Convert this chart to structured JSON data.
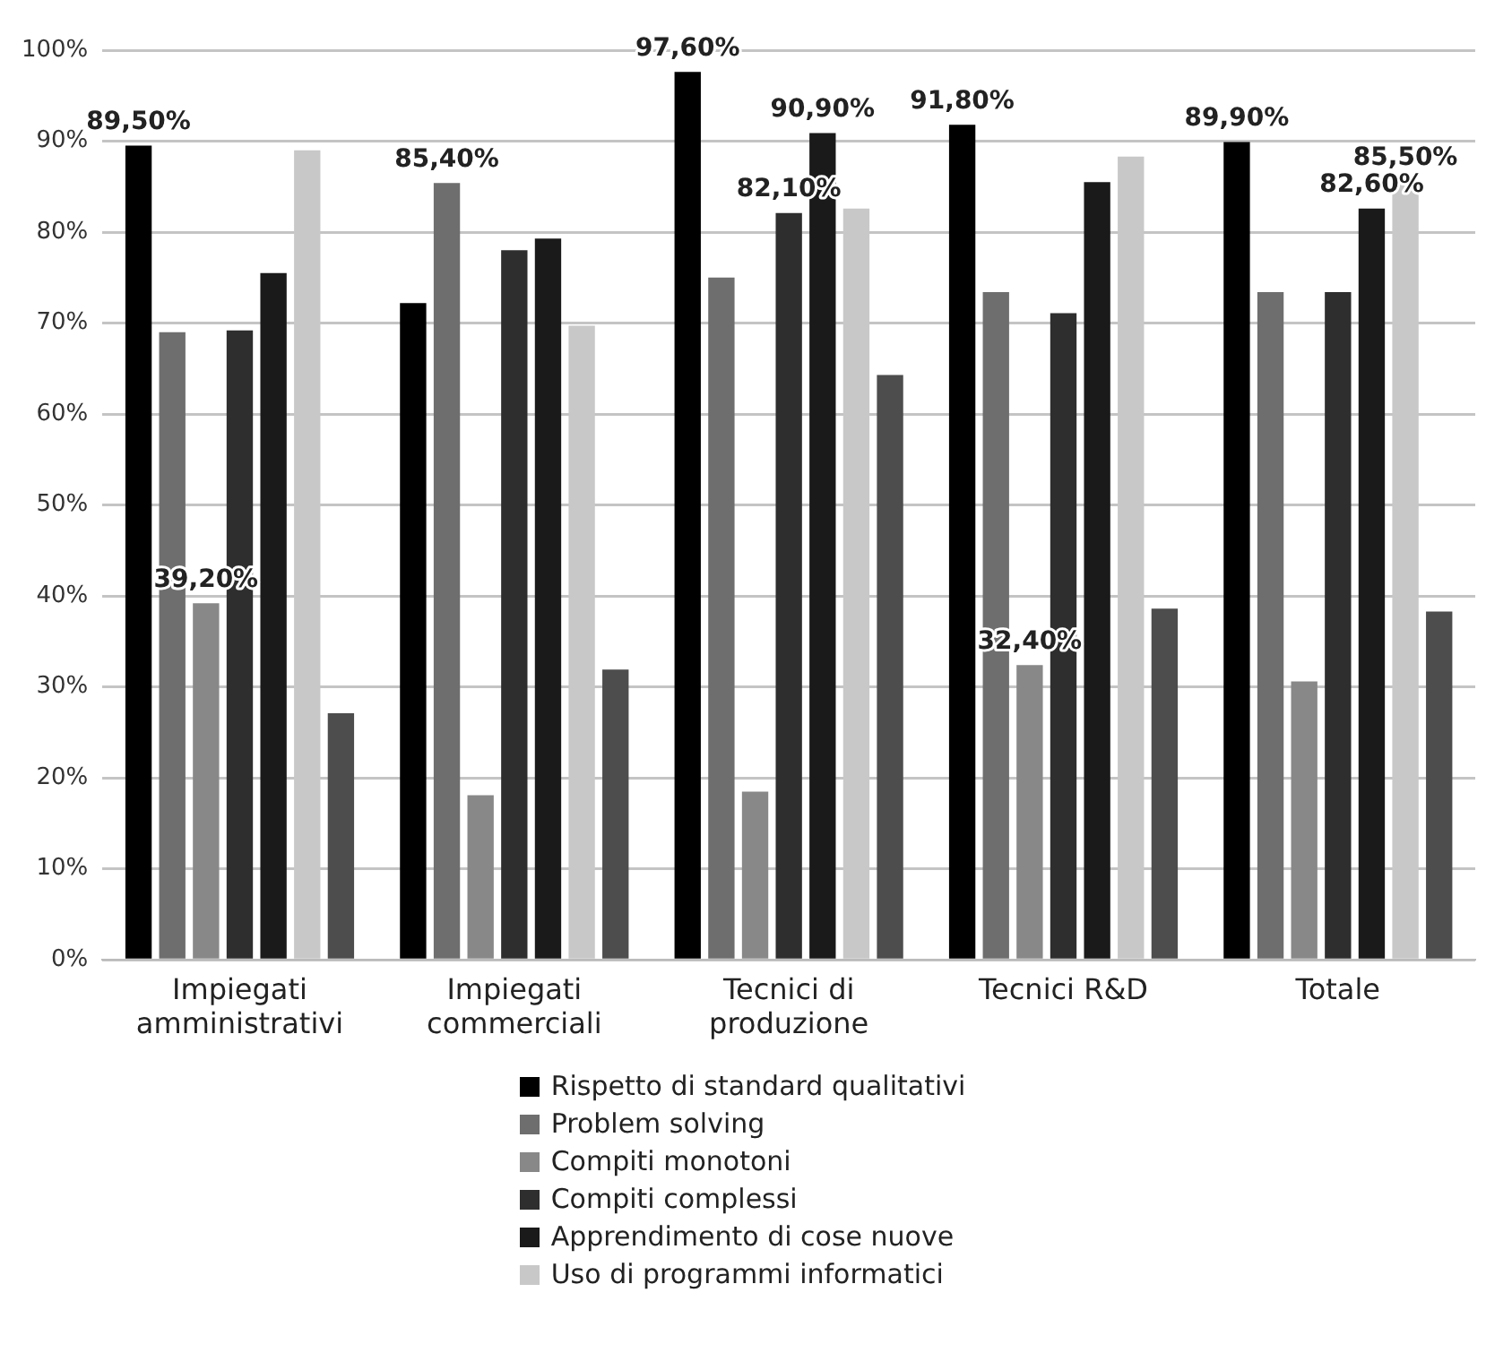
{
  "chart_data": {
    "type": "bar",
    "categories": [
      "Impiegati amministrativi",
      "Impiegati commerciali",
      "Tecnici di produzione",
      "Tecnici R&D",
      "Totale"
    ],
    "series": [
      {
        "name": "Rispetto di standard qualitativi",
        "color": "#000000",
        "values": [
          89.5,
          72.2,
          97.6,
          91.8,
          89.9
        ],
        "value_labels": [
          "89,50%",
          null,
          "97,60%",
          "91,80%",
          "89,90%"
        ]
      },
      {
        "name": "Problem solving",
        "color": "#6e6e6e",
        "values": [
          69,
          85.4,
          75,
          73.4,
          73.4
        ],
        "value_labels": [
          null,
          "85,40%",
          null,
          null,
          null
        ]
      },
      {
        "name": "Compiti monotoni",
        "color": "#888888",
        "values": [
          39.2,
          18.1,
          18.5,
          32.4,
          30.6
        ],
        "value_labels": [
          "39,20%",
          null,
          null,
          "32,40%",
          null
        ]
      },
      {
        "name": "Compiti complessi",
        "color": "#2e2e2e",
        "values": [
          69.2,
          78,
          82.1,
          71.1,
          73.4
        ],
        "value_labels": [
          null,
          null,
          "82,10%",
          null,
          null
        ]
      },
      {
        "name": "Apprendimento di cose nuove",
        "color": "#1a1a1a",
        "values": [
          75.5,
          79.3,
          90.9,
          85.5,
          82.6
        ],
        "value_labels": [
          null,
          null,
          "90,90%",
          null,
          "82,60%"
        ]
      },
      {
        "name": "Uso di programmi informatici",
        "color": "#c8c8c8",
        "values": [
          89,
          69.7,
          82.6,
          88.3,
          85.5
        ],
        "value_labels": [
          null,
          null,
          null,
          null,
          "85,50%"
        ]
      },
      {
        "color": "#4d4d4d",
        "values": [
          27.1,
          31.9,
          64.3,
          38.6,
          38.3
        ]
      }
    ],
    "ylim": [
      0,
      100
    ],
    "yticks": [
      {
        "value": 0,
        "label": "0%"
      },
      {
        "value": 10,
        "label": "10%"
      },
      {
        "value": 20,
        "label": "20%"
      },
      {
        "value": 30,
        "label": "30%"
      },
      {
        "value": 40,
        "label": "40%"
      },
      {
        "value": 50,
        "label": "50%"
      },
      {
        "value": 60,
        "label": "60%"
      },
      {
        "value": 70,
        "label": "70%"
      },
      {
        "value": 80,
        "label": "80%"
      },
      {
        "value": 90,
        "label": "90%"
      },
      {
        "value": 100,
        "label": "100%"
      }
    ],
    "grid": "y",
    "legend": "bottom"
  }
}
